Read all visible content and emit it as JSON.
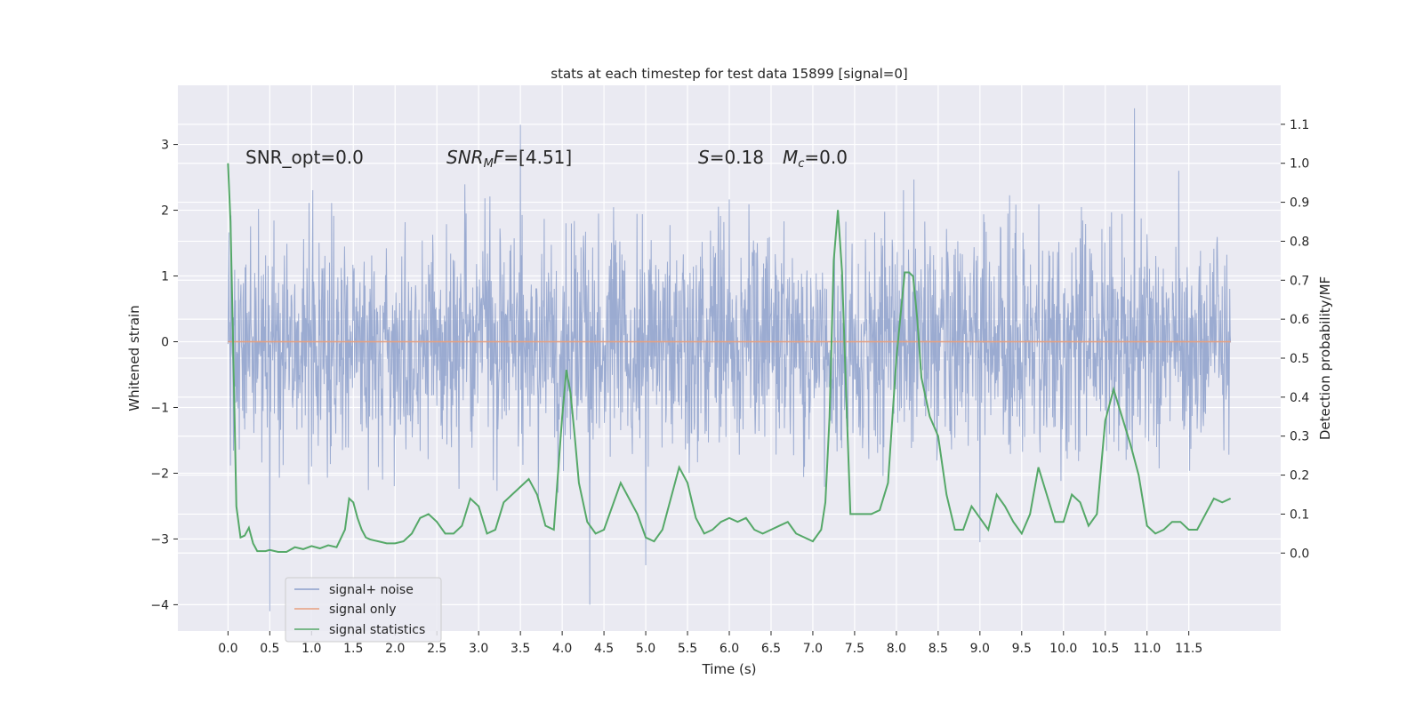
{
  "chart_data": {
    "type": "line",
    "title": "stats at each timestep for test data 15899 [signal=0]",
    "xlabel": "Time (s)",
    "ylabel_left": "Whitened strain",
    "ylabel_right": "Detection probability/MF",
    "xlim": [
      -0.6,
      12.6
    ],
    "ylim_left": [
      -4.4,
      3.9
    ],
    "ylim_right": [
      -0.2,
      1.2
    ],
    "xticks": [
      0.0,
      0.5,
      1.0,
      1.5,
      2.0,
      2.5,
      3.0,
      3.5,
      4.0,
      4.5,
      5.0,
      5.5,
      6.0,
      6.5,
      7.0,
      7.5,
      8.0,
      8.5,
      9.0,
      9.5,
      10.0,
      10.5,
      11.0,
      11.5
    ],
    "xtick_labels": [
      "0.0",
      "0.5",
      "1.0",
      "1.5",
      "2.0",
      "2.5",
      "3.0",
      "3.5",
      "4.0",
      "4.5",
      "5.0",
      "5.5",
      "6.0",
      "6.5",
      "7.0",
      "7.5",
      "8.0",
      "8.5",
      "9.0",
      "9.5",
      "10.0",
      "10.5",
      "11.0",
      "11.5"
    ],
    "yticks_left": [
      3,
      2,
      1,
      0,
      -1,
      -2,
      -3,
      -4
    ],
    "ytick_labels_left": [
      "3",
      "2",
      "1",
      "0",
      "−1",
      "−2",
      "−3",
      "−4"
    ],
    "yticks_right": [
      1.1,
      1.0,
      0.9,
      0.8,
      0.7,
      0.6,
      0.5,
      0.4,
      0.3,
      0.2,
      0.1,
      0.0
    ],
    "ytick_labels_right": [
      "1.1",
      "1.0",
      "0.9",
      "0.8",
      "0.7",
      "0.6",
      "0.5",
      "0.4",
      "0.3",
      "0.2",
      "0.1",
      "0.0"
    ],
    "grid": true,
    "legend_position": "lower-left",
    "annotations": {
      "snr_opt": "SNR_opt=0.0",
      "snr_mf_prefix": "SNR",
      "snr_mf_sub": "M",
      "snr_mf_mid": "F",
      "snr_mf_value": "=[4.51]",
      "s_symbol": "S",
      "s_value": "=0.18",
      "mc_symbol": "M",
      "mc_sub": "c",
      "mc_value": "=0.0"
    },
    "series": [
      {
        "name": "signal+ noise",
        "axis": "left",
        "color": "#8da0cb",
        "description_of_envelope": "dense noisy time series",
        "duration": 12.0,
        "notable_extremes": [
          {
            "x": 0.5,
            "y": -4.1
          },
          {
            "x": 3.5,
            "y": 3.3
          },
          {
            "x": 4.33,
            "y": -4.0
          },
          {
            "x": 5.0,
            "y": -3.4
          },
          {
            "x": 9.0,
            "y": -3.05
          },
          {
            "x": 10.85,
            "y": 3.55
          }
        ]
      },
      {
        "name": "signal only",
        "axis": "left",
        "color": "#e8a07f",
        "x": [
          0.0,
          12.0
        ],
        "y": [
          0.0,
          0.0
        ]
      },
      {
        "name": "signal statistics",
        "axis": "right",
        "color": "#55a868",
        "x": [
          0.0,
          0.03,
          0.06,
          0.1,
          0.15,
          0.2,
          0.25,
          0.3,
          0.35,
          0.4,
          0.45,
          0.5,
          0.6,
          0.7,
          0.8,
          0.9,
          1.0,
          1.1,
          1.2,
          1.3,
          1.4,
          1.45,
          1.5,
          1.55,
          1.6,
          1.65,
          1.7,
          1.8,
          1.9,
          2.0,
          2.1,
          2.2,
          2.3,
          2.4,
          2.5,
          2.6,
          2.7,
          2.8,
          2.9,
          3.0,
          3.1,
          3.2,
          3.3,
          3.4,
          3.5,
          3.6,
          3.7,
          3.8,
          3.9,
          4.0,
          4.05,
          4.1,
          4.15,
          4.2,
          4.3,
          4.4,
          4.5,
          4.6,
          4.7,
          4.8,
          4.9,
          5.0,
          5.1,
          5.2,
          5.3,
          5.4,
          5.5,
          5.6,
          5.7,
          5.8,
          5.9,
          6.0,
          6.1,
          6.2,
          6.3,
          6.4,
          6.5,
          6.6,
          6.7,
          6.8,
          6.9,
          7.0,
          7.1,
          7.15,
          7.2,
          7.25,
          7.3,
          7.35,
          7.4,
          7.45,
          7.5,
          7.6,
          7.7,
          7.8,
          7.9,
          8.0,
          8.1,
          8.15,
          8.2,
          8.25,
          8.3,
          8.4,
          8.5,
          8.6,
          8.7,
          8.8,
          8.9,
          9.0,
          9.1,
          9.2,
          9.3,
          9.4,
          9.5,
          9.6,
          9.7,
          9.8,
          9.9,
          10.0,
          10.1,
          10.2,
          10.3,
          10.4,
          10.5,
          10.6,
          10.7,
          10.8,
          10.9,
          11.0,
          11.1,
          11.2,
          11.3,
          11.4,
          11.5,
          11.6,
          11.7,
          11.8,
          11.9,
          12.0
        ],
        "y": [
          1.0,
          0.85,
          0.55,
          0.12,
          0.04,
          0.045,
          0.065,
          0.025,
          0.005,
          0.005,
          0.005,
          0.008,
          0.003,
          0.003,
          0.015,
          0.01,
          0.018,
          0.012,
          0.02,
          0.015,
          0.06,
          0.14,
          0.13,
          0.09,
          0.06,
          0.04,
          0.035,
          0.03,
          0.025,
          0.025,
          0.03,
          0.05,
          0.09,
          0.1,
          0.08,
          0.05,
          0.05,
          0.07,
          0.14,
          0.12,
          0.05,
          0.06,
          0.13,
          0.15,
          0.17,
          0.19,
          0.15,
          0.07,
          0.06,
          0.35,
          0.47,
          0.41,
          0.3,
          0.18,
          0.08,
          0.05,
          0.06,
          0.12,
          0.18,
          0.14,
          0.1,
          0.04,
          0.03,
          0.06,
          0.14,
          0.22,
          0.18,
          0.09,
          0.05,
          0.06,
          0.08,
          0.09,
          0.08,
          0.09,
          0.06,
          0.05,
          0.06,
          0.07,
          0.08,
          0.05,
          0.04,
          0.03,
          0.06,
          0.13,
          0.35,
          0.75,
          0.88,
          0.72,
          0.4,
          0.1,
          0.1,
          0.1,
          0.1,
          0.11,
          0.18,
          0.5,
          0.72,
          0.72,
          0.71,
          0.6,
          0.45,
          0.35,
          0.3,
          0.15,
          0.06,
          0.06,
          0.12,
          0.09,
          0.06,
          0.15,
          0.12,
          0.08,
          0.05,
          0.1,
          0.22,
          0.15,
          0.08,
          0.08,
          0.15,
          0.13,
          0.07,
          0.1,
          0.34,
          0.42,
          0.35,
          0.28,
          0.2,
          0.07,
          0.05,
          0.06,
          0.08,
          0.08,
          0.06,
          0.06,
          0.1,
          0.14,
          0.13,
          0.14
        ]
      }
    ]
  }
}
